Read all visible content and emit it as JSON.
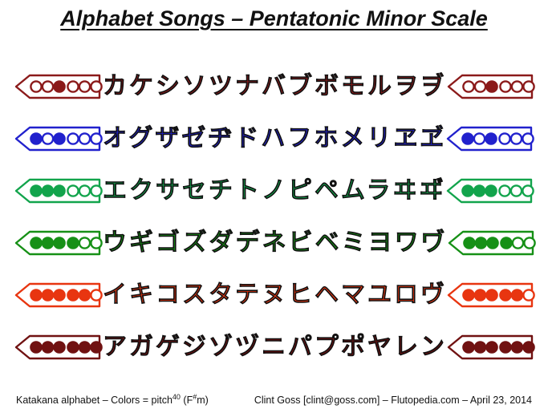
{
  "title": "Alphabet Songs – Pentatonic Minor Scale",
  "rows": [
    {
      "color": "#8B1A1A",
      "holes": [
        0,
        0,
        1,
        0,
        0,
        0
      ],
      "characters": "カケシソツナバブボモルヲヺ"
    },
    {
      "color": "#2121CD",
      "holes": [
        1,
        0,
        1,
        0,
        0,
        0
      ],
      "characters": "オグザゼヂドハフホメリヱヹ"
    },
    {
      "color": "#12A44C",
      "holes": [
        1,
        1,
        1,
        0,
        0,
        0
      ],
      "characters": "エクサセチトノピペムラヰヸ"
    },
    {
      "color": "#169016",
      "holes": [
        1,
        1,
        1,
        1,
        0,
        0
      ],
      "characters": "ウギゴズダデネビベミヨワヷ"
    },
    {
      "color": "#E83510",
      "holes": [
        1,
        1,
        1,
        1,
        1,
        0
      ],
      "characters": "イキコスタテヌヒヘマユロヴ"
    },
    {
      "color": "#701111",
      "holes": [
        1,
        1,
        1,
        1,
        1,
        1
      ],
      "characters": "アガゲジゾヅニパプポヤレン"
    }
  ],
  "footer": {
    "left_prefix": "Katakana alphabet – Colors = pitch",
    "left_sup_pitch": "40",
    "left_mid": " (F",
    "left_sup_sharp": "#",
    "left_suffix": "m)",
    "right": "Clint Goss [clint@goss.com] – Flutopedia.com – April 23, 2014"
  }
}
